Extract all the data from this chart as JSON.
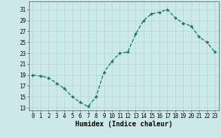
{
  "x": [
    0,
    1,
    2,
    3,
    4,
    5,
    6,
    7,
    8,
    9,
    10,
    11,
    12,
    13,
    14,
    15,
    16,
    17,
    18,
    19,
    20,
    21,
    22,
    23
  ],
  "y": [
    19,
    18.8,
    18.5,
    17.5,
    16.5,
    15.0,
    14.0,
    13.2,
    15.0,
    19.5,
    21.5,
    23.0,
    23.2,
    26.5,
    29.0,
    30.2,
    30.5,
    31.0,
    29.5,
    28.5,
    28.0,
    26.0,
    25.0,
    23.2
  ],
  "line_color": "#1a7a6e",
  "marker": "D",
  "markersize": 2.0,
  "bg_color": "#cce8e8",
  "grid_color": "#aad4d4",
  "axis_color": "#666666",
  "xlabel": "Humidex (Indice chaleur)",
  "xlabel_fontsize": 7,
  "yticks": [
    13,
    15,
    17,
    19,
    21,
    23,
    25,
    27,
    29,
    31
  ],
  "xticks": [
    0,
    1,
    2,
    3,
    4,
    5,
    6,
    7,
    8,
    9,
    10,
    11,
    12,
    13,
    14,
    15,
    16,
    17,
    18,
    19,
    20,
    21,
    22,
    23
  ],
  "ylim": [
    12.5,
    32.5
  ],
  "xlim": [
    -0.5,
    23.5
  ],
  "tick_fontsize": 5.5,
  "linewidth": 1.0
}
